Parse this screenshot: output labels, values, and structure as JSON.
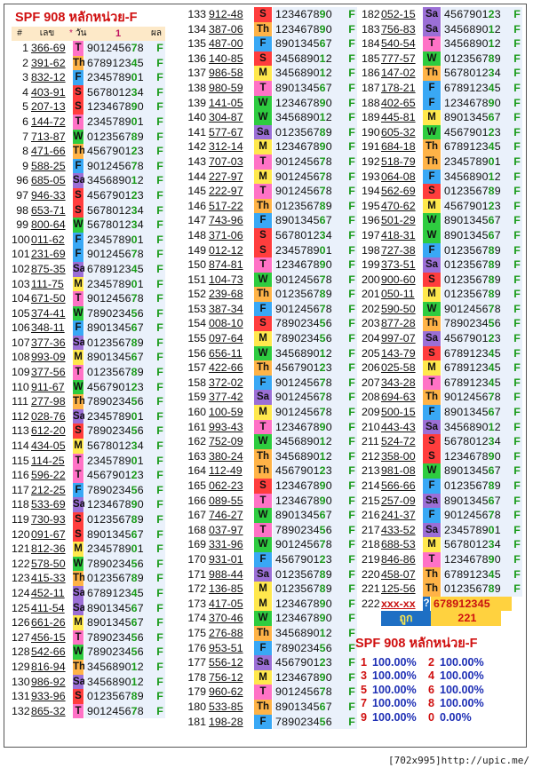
{
  "title": "SPF 908 หลักหน่วย-F",
  "header": {
    "num": "#",
    "code": "เลข",
    "star": "*",
    "day": "วัน",
    "val": "1",
    "res": "ผล"
  },
  "rows_c1": [
    [
      "1",
      "366-69",
      "T",
      "901245678",
      "F"
    ],
    [
      "2",
      "391-62",
      "Th",
      "678912345",
      "F"
    ],
    [
      "3",
      "832-12",
      "F",
      "234578901",
      "F"
    ],
    [
      "4",
      "403-91",
      "S",
      "567801234",
      "F"
    ],
    [
      "5",
      "207-13",
      "S",
      "123467890",
      "F"
    ],
    [
      "6",
      "144-72",
      "T",
      "234578901",
      "F"
    ],
    [
      "7",
      "713-87",
      "W",
      "012356789",
      "F"
    ],
    [
      "8",
      "471-66",
      "Th",
      "456790123",
      "F"
    ],
    [
      "9",
      "588-25",
      "F",
      "901245678",
      "F"
    ],
    [
      "96",
      "685-05",
      "Sa",
      "345689012",
      "F"
    ],
    [
      "97",
      "946-33",
      "S",
      "456790123",
      "F"
    ],
    [
      "98",
      "653-71",
      "S",
      "567801234",
      "F"
    ],
    [
      "99",
      "800-64",
      "W",
      "567801234",
      "F"
    ],
    [
      "100",
      "011-62",
      "F",
      "234578901",
      "F"
    ],
    [
      "101",
      "231-69",
      "F",
      "901245678",
      "F"
    ],
    [
      "102",
      "875-35",
      "Sa",
      "678912345",
      "F"
    ],
    [
      "103",
      "111-75",
      "M",
      "234578901",
      "F"
    ],
    [
      "104",
      "671-50",
      "T",
      "901245678",
      "F"
    ],
    [
      "105",
      "374-41",
      "W",
      "789023456",
      "F"
    ],
    [
      "106",
      "348-11",
      "F",
      "890134567",
      "F"
    ],
    [
      "107",
      "377-36",
      "Sa",
      "012356789",
      "F"
    ],
    [
      "108",
      "993-09",
      "M",
      "890134567",
      "F"
    ],
    [
      "109",
      "377-56",
      "T",
      "012356789",
      "F"
    ],
    [
      "110",
      "911-67",
      "W",
      "456790123",
      "F"
    ],
    [
      "111",
      "277-98",
      "Th",
      "789023456",
      "F"
    ],
    [
      "112",
      "028-76",
      "Sa",
      "234578901",
      "F"
    ],
    [
      "113",
      "612-20",
      "S",
      "789023456",
      "F"
    ],
    [
      "114",
      "434-05",
      "M",
      "567801234",
      "F"
    ],
    [
      "115",
      "114-25",
      "T",
      "234578901",
      "F"
    ],
    [
      "116",
      "596-22",
      "T",
      "456790123",
      "F"
    ],
    [
      "117",
      "212-25",
      "F",
      "789023456",
      "F"
    ],
    [
      "118",
      "533-69",
      "Sa",
      "123467890",
      "F"
    ],
    [
      "119",
      "730-93",
      "S",
      "012356789",
      "F"
    ],
    [
      "120",
      "091-67",
      "S",
      "890134567",
      "F"
    ],
    [
      "121",
      "812-36",
      "M",
      "234578901",
      "F"
    ],
    [
      "122",
      "578-50",
      "W",
      "789023456",
      "F"
    ],
    [
      "123",
      "415-33",
      "Th",
      "012356789",
      "F"
    ],
    [
      "124",
      "452-11",
      "Sa",
      "678912345",
      "F"
    ],
    [
      "125",
      "411-54",
      "Sa",
      "890134567",
      "F"
    ],
    [
      "126",
      "661-26",
      "M",
      "890134567",
      "F"
    ],
    [
      "127",
      "456-15",
      "T",
      "789023456",
      "F"
    ],
    [
      "128",
      "542-66",
      "W",
      "789023456",
      "F"
    ],
    [
      "129",
      "816-94",
      "Th",
      "345689012",
      "F"
    ],
    [
      "130",
      "986-92",
      "Sa",
      "345689012",
      "F"
    ],
    [
      "131",
      "933-96",
      "S",
      "012356789",
      "F"
    ],
    [
      "132",
      "865-32",
      "T",
      "901245678",
      "F"
    ]
  ],
  "rows_c2": [
    [
      "133",
      "912-48",
      "S",
      "123467890",
      "F"
    ],
    [
      "134",
      "387-06",
      "Th",
      "123467890",
      "F"
    ],
    [
      "135",
      "487-00",
      "F",
      "890134567",
      "F"
    ],
    [
      "136",
      "140-85",
      "S",
      "345689012",
      "F"
    ],
    [
      "137",
      "986-58",
      "M",
      "345689012",
      "F"
    ],
    [
      "138",
      "980-59",
      "T",
      "890134567",
      "F"
    ],
    [
      "139",
      "141-05",
      "W",
      "123467890",
      "F"
    ],
    [
      "140",
      "304-87",
      "W",
      "345689012",
      "F"
    ],
    [
      "141",
      "577-67",
      "Sa",
      "012356789",
      "F"
    ],
    [
      "142",
      "312-14",
      "M",
      "123467890",
      "F"
    ],
    [
      "143",
      "707-03",
      "T",
      "901245678",
      "F"
    ],
    [
      "144",
      "227-97",
      "M",
      "901245678",
      "F"
    ],
    [
      "145",
      "222-97",
      "T",
      "901245678",
      "F"
    ],
    [
      "146",
      "517-22",
      "Th",
      "012356789",
      "F"
    ],
    [
      "147",
      "743-96",
      "F",
      "890134567",
      "F"
    ],
    [
      "148",
      "371-06",
      "S",
      "567801234",
      "F"
    ],
    [
      "149",
      "012-12",
      "S",
      "234578901",
      "F"
    ],
    [
      "150",
      "874-81",
      "T",
      "123467890",
      "F"
    ],
    [
      "151",
      "104-73",
      "W",
      "901245678",
      "F"
    ],
    [
      "152",
      "239-68",
      "Th",
      "012356789",
      "F"
    ],
    [
      "153",
      "387-34",
      "F",
      "901245678",
      "F"
    ],
    [
      "154",
      "008-10",
      "S",
      "789023456",
      "F"
    ],
    [
      "155",
      "097-64",
      "M",
      "789023456",
      "F"
    ],
    [
      "156",
      "656-11",
      "W",
      "345689012",
      "F"
    ],
    [
      "157",
      "422-66",
      "Th",
      "456790123",
      "F"
    ],
    [
      "158",
      "372-02",
      "F",
      "901245678",
      "F"
    ],
    [
      "159",
      "377-42",
      "Sa",
      "901245678",
      "F"
    ],
    [
      "160",
      "100-59",
      "M",
      "901245678",
      "F"
    ],
    [
      "161",
      "993-43",
      "T",
      "123467890",
      "F"
    ],
    [
      "162",
      "752-09",
      "W",
      "345689012",
      "F"
    ],
    [
      "163",
      "380-24",
      "Th",
      "345689012",
      "F"
    ],
    [
      "164",
      "112-49",
      "Th",
      "456790123",
      "F"
    ],
    [
      "165",
      "062-23",
      "S",
      "123467890",
      "F"
    ],
    [
      "166",
      "089-55",
      "T",
      "123467890",
      "F"
    ],
    [
      "167",
      "746-27",
      "W",
      "890134567",
      "F"
    ],
    [
      "168",
      "037-97",
      "T",
      "789023456",
      "F"
    ],
    [
      "169",
      "331-96",
      "W",
      "901245678",
      "F"
    ],
    [
      "170",
      "931-01",
      "F",
      "456790123",
      "F"
    ],
    [
      "171",
      "988-44",
      "Sa",
      "012356789",
      "F"
    ],
    [
      "172",
      "136-85",
      "M",
      "012356789",
      "F"
    ],
    [
      "173",
      "417-05",
      "M",
      "123467890",
      "F"
    ],
    [
      "174",
      "370-46",
      "W",
      "123467890",
      "F"
    ],
    [
      "175",
      "276-88",
      "Th",
      "345689012",
      "F"
    ],
    [
      "176",
      "953-51",
      "F",
      "789023456",
      "F"
    ],
    [
      "177",
      "556-12",
      "Sa",
      "456790123",
      "F"
    ],
    [
      "178",
      "756-12",
      "M",
      "123467890",
      "F"
    ],
    [
      "179",
      "960-62",
      "T",
      "901245678",
      "F"
    ],
    [
      "180",
      "533-85",
      "Th",
      "890134567",
      "F"
    ],
    [
      "181",
      "198-28",
      "F",
      "789023456",
      "F"
    ]
  ],
  "rows_c3": [
    [
      "182",
      "052-15",
      "Sa",
      "456790123",
      "F"
    ],
    [
      "183",
      "756-83",
      "Sa",
      "345689012",
      "F"
    ],
    [
      "184",
      "540-54",
      "T",
      "345689012",
      "F"
    ],
    [
      "185",
      "777-57",
      "W",
      "012356789",
      "F"
    ],
    [
      "186",
      "147-02",
      "Th",
      "567801234",
      "F"
    ],
    [
      "187",
      "178-21",
      "F",
      "678912345",
      "F"
    ],
    [
      "188",
      "402-65",
      "F",
      "123467890",
      "F"
    ],
    [
      "189",
      "445-81",
      "M",
      "890134567",
      "F"
    ],
    [
      "190",
      "605-32",
      "W",
      "456790123",
      "F"
    ],
    [
      "191",
      "684-18",
      "Th",
      "678912345",
      "F"
    ],
    [
      "192",
      "518-79",
      "Th",
      "234578901",
      "F"
    ],
    [
      "193",
      "064-08",
      "F",
      "345689012",
      "F"
    ],
    [
      "194",
      "562-69",
      "S",
      "012356789",
      "F"
    ],
    [
      "195",
      "470-62",
      "M",
      "456790123",
      "F"
    ],
    [
      "196",
      "501-29",
      "W",
      "890134567",
      "F"
    ],
    [
      "197",
      "418-31",
      "W",
      "890134567",
      "F"
    ],
    [
      "198",
      "727-38",
      "F",
      "012356789",
      "F"
    ],
    [
      "199",
      "373-51",
      "Sa",
      "012356789",
      "F"
    ],
    [
      "200",
      "900-60",
      "S",
      "012356789",
      "F"
    ],
    [
      "201",
      "050-11",
      "M",
      "012356789",
      "F"
    ],
    [
      "202",
      "590-50",
      "W",
      "901245678",
      "F"
    ],
    [
      "203",
      "877-28",
      "Th",
      "789023456",
      "F"
    ],
    [
      "204",
      "997-07",
      "Sa",
      "456790123",
      "F"
    ],
    [
      "205",
      "143-79",
      "S",
      "678912345",
      "F"
    ],
    [
      "206",
      "025-58",
      "M",
      "678912345",
      "F"
    ],
    [
      "207",
      "343-28",
      "T",
      "678912345",
      "F"
    ],
    [
      "208",
      "694-63",
      "Th",
      "901245678",
      "F"
    ],
    [
      "209",
      "500-15",
      "F",
      "890134567",
      "F"
    ],
    [
      "210",
      "443-43",
      "Sa",
      "345689012",
      "F"
    ],
    [
      "211",
      "524-72",
      "S",
      "567801234",
      "F"
    ],
    [
      "212",
      "358-00",
      "S",
      "123467890",
      "F"
    ],
    [
      "213",
      "981-08",
      "W",
      "890134567",
      "F"
    ],
    [
      "214",
      "566-66",
      "F",
      "012356789",
      "F"
    ],
    [
      "215",
      "257-09",
      "Sa",
      "890134567",
      "F"
    ],
    [
      "216",
      "241-37",
      "F",
      "901245678",
      "F"
    ],
    [
      "217",
      "433-52",
      "Sa",
      "234578901",
      "F"
    ],
    [
      "218",
      "688-53",
      "M",
      "567801234",
      "F"
    ],
    [
      "219",
      "846-86",
      "T",
      "123467890",
      "F"
    ],
    [
      "220",
      "458-07",
      "Th",
      "678912345",
      "F"
    ],
    [
      "221",
      "125-56",
      "Th",
      "012356789",
      "F"
    ]
  ],
  "special_row": [
    "222",
    "xxx-xx",
    "?",
    "678912345",
    ""
  ],
  "result_row": {
    "blank": "",
    "label": "ถูก",
    "value": "221"
  },
  "summary_title": "SPF 908 หลักหน่วย-F",
  "stats": [
    [
      "1",
      "100.00%",
      "2",
      "100.00%"
    ],
    [
      "3",
      "100.00%",
      "4",
      "100.00%"
    ],
    [
      "5",
      "100.00%",
      "6",
      "100.00%"
    ],
    [
      "7",
      "100.00%",
      "8",
      "100.00%"
    ],
    [
      "9",
      "100.00%",
      "0",
      "0.00%"
    ]
  ],
  "footer": "[702x995]http://upic.me/",
  "day_colors": {
    "T": "#ff72c6",
    "Th": "#ffb347",
    "F": "#39a8f5",
    "S": "#ff3d3d",
    "W": "#2ecc40",
    "Sa": "#9b6fd6",
    "M": "#ffe84d"
  },
  "highlight_digit": "F"
}
